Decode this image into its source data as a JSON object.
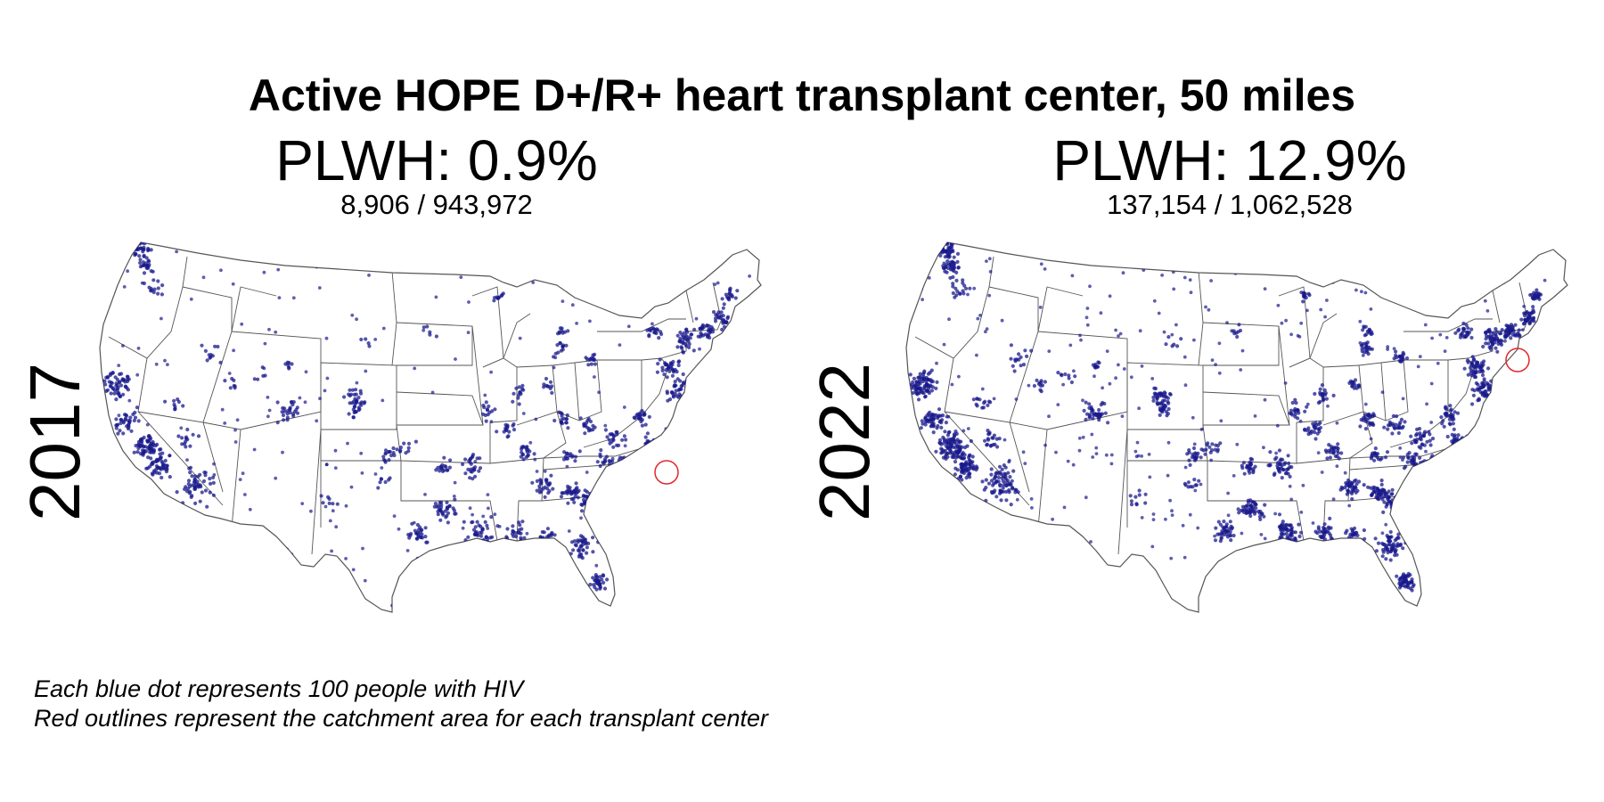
{
  "title": "Active HOPE D+/R+ heart transplant center, 50 miles",
  "colors": {
    "dot": "#1a1a8c",
    "catchment": "#e0262d",
    "border": "#555555"
  },
  "panels": [
    {
      "year": "2017",
      "plwh_label": "PLWH: 0.9%",
      "counts": "8,906 / 943,972",
      "plwh_pct": 0.9,
      "catchment_center": "western North Carolina"
    },
    {
      "year": "2022",
      "plwh_label": "PLWH: 12.9%",
      "counts": "137,154 / 1,062,528",
      "plwh_pct": 12.9,
      "catchment_center": "New Jersey / New York area"
    }
  ],
  "caption": {
    "line1": "Each blue dot represents 100 people with HIV",
    "line2": "Red outlines represent the catchment area for each transplant center"
  }
}
